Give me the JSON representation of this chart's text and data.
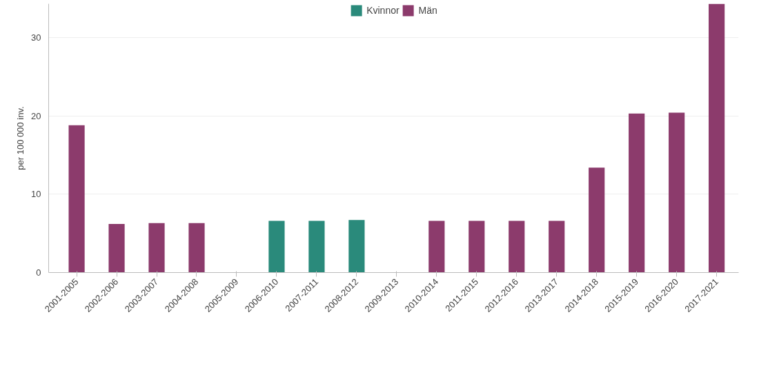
{
  "chart_data": {
    "type": "bar",
    "ylabel": "per 100 000 inv.",
    "categories": [
      "2001-2005",
      "2002-2006",
      "2003-2007",
      "2004-2008",
      "2005-2009",
      "2006-2010",
      "2007-2011",
      "2008-2012",
      "2009-2013",
      "2010-2014",
      "2011-2015",
      "2012-2016",
      "2013-2017",
      "2014-2018",
      "2015-2019",
      "2016-2020",
      "2017-2021"
    ],
    "series": [
      {
        "name": "Kvinnor",
        "color": "#2a8a7b",
        "values": [
          null,
          null,
          null,
          null,
          null,
          6.6,
          6.6,
          6.7,
          null,
          null,
          null,
          null,
          null,
          null,
          null,
          null,
          null
        ]
      },
      {
        "name": "Män",
        "color": "#8c3b6c",
        "values": [
          18.8,
          6.2,
          6.3,
          6.3,
          null,
          null,
          null,
          null,
          null,
          6.6,
          6.6,
          6.6,
          6.6,
          13.4,
          20.3,
          20.4,
          34.3
        ]
      }
    ],
    "ylim": [
      0,
      34.3
    ],
    "yticks": [
      0,
      10,
      20,
      30
    ],
    "grid": "y",
    "legend": "top"
  }
}
